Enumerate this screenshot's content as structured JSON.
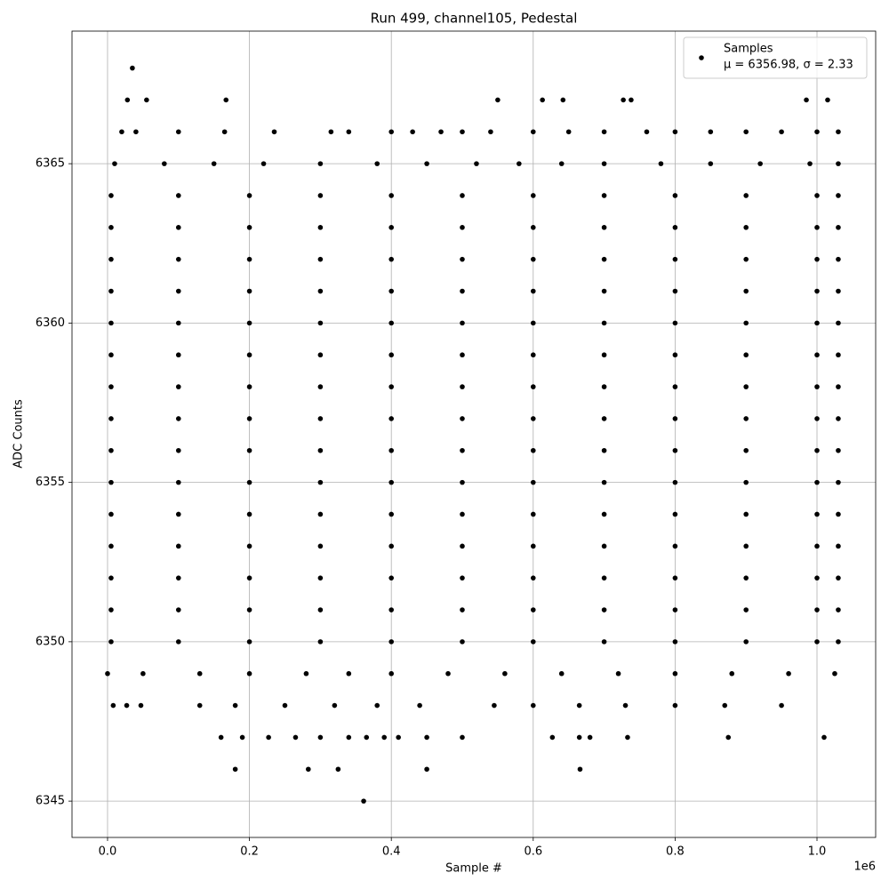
{
  "chart_data": {
    "type": "scatter",
    "title": "Run 499, channel105, Pedestal",
    "xlabel": "Sample #",
    "ylabel": "ADC Counts",
    "x_offset_label": "1e6",
    "legend_note": "μ = 6356.98, σ = 2.33",
    "legend_loc": "upper right",
    "grid": true,
    "xlim": [
      -50100,
      1082700
    ],
    "ylim": [
      6343.86,
      6369.16
    ],
    "xticks": [
      {
        "value": 0,
        "label": "0.0"
      },
      {
        "value": 200000,
        "label": "0.2"
      },
      {
        "value": 400000,
        "label": "0.4"
      },
      {
        "value": 600000,
        "label": "0.6"
      },
      {
        "value": 800000,
        "label": "0.8"
      },
      {
        "value": 1000000,
        "label": "1.0"
      }
    ],
    "yticks": [
      6345,
      6350,
      6355,
      6360,
      6365
    ],
    "series": [
      {
        "name": "Samples",
        "color": "#000000",
        "x": [
          35000,
          28000,
          55000,
          167000,
          550000,
          613000,
          642000,
          727000,
          738000,
          985000,
          1015000,
          20000,
          40000,
          100000,
          165000,
          235000,
          315000,
          340000,
          400000,
          430000,
          470000,
          500000,
          540000,
          600000,
          650000,
          700000,
          760000,
          800000,
          850000,
          900000,
          950000,
          1000000,
          1030000,
          10000,
          80000,
          150000,
          220000,
          300000,
          380000,
          450000,
          520000,
          580000,
          640000,
          700000,
          780000,
          850000,
          920000,
          990000,
          1030000,
          5000,
          100000,
          200000,
          300000,
          400000,
          500000,
          600000,
          700000,
          800000,
          900000,
          1000000,
          1030000,
          5000,
          100000,
          200000,
          300000,
          400000,
          500000,
          600000,
          700000,
          800000,
          900000,
          1000000,
          1030000,
          5000,
          100000,
          200000,
          300000,
          400000,
          500000,
          600000,
          700000,
          800000,
          900000,
          1000000,
          1030000,
          5000,
          100000,
          200000,
          300000,
          400000,
          500000,
          600000,
          700000,
          800000,
          900000,
          1000000,
          1030000,
          5000,
          100000,
          200000,
          300000,
          400000,
          500000,
          600000,
          700000,
          800000,
          900000,
          1000000,
          1030000,
          5000,
          100000,
          200000,
          300000,
          400000,
          500000,
          600000,
          700000,
          800000,
          900000,
          1000000,
          1030000,
          5000,
          100000,
          200000,
          300000,
          400000,
          500000,
          600000,
          700000,
          800000,
          900000,
          1000000,
          1030000,
          5000,
          100000,
          200000,
          300000,
          400000,
          500000,
          600000,
          700000,
          800000,
          900000,
          1000000,
          1030000,
          5000,
          100000,
          200000,
          300000,
          400000,
          500000,
          600000,
          700000,
          800000,
          900000,
          1000000,
          1030000,
          5000,
          100000,
          200000,
          300000,
          400000,
          500000,
          600000,
          700000,
          800000,
          900000,
          1000000,
          1030000,
          5000,
          100000,
          200000,
          300000,
          400000,
          500000,
          600000,
          700000,
          800000,
          900000,
          1000000,
          1030000,
          5000,
          100000,
          200000,
          300000,
          400000,
          500000,
          600000,
          700000,
          800000,
          900000,
          1000000,
          1030000,
          5000,
          100000,
          200000,
          300000,
          400000,
          500000,
          600000,
          700000,
          800000,
          900000,
          1000000,
          1030000,
          5000,
          100000,
          200000,
          300000,
          400000,
          500000,
          600000,
          700000,
          800000,
          900000,
          1000000,
          1030000,
          5000,
          100000,
          200000,
          300000,
          400000,
          500000,
          600000,
          700000,
          800000,
          900000,
          1000000,
          1030000,
          0,
          50000,
          130000,
          200000,
          280000,
          340000,
          400000,
          480000,
          560000,
          640000,
          720000,
          800000,
          880000,
          960000,
          1025000,
          8000,
          27000,
          47000,
          130000,
          180000,
          250000,
          320000,
          380000,
          440000,
          545000,
          600000,
          665000,
          730000,
          800000,
          870000,
          950000,
          160000,
          190000,
          227000,
          265000,
          300000,
          340000,
          365000,
          390000,
          410000,
          450000,
          500000,
          627000,
          665000,
          680000,
          733000,
          875000,
          1010000,
          180000,
          283000,
          325000,
          450000,
          666000,
          361000
        ],
        "y": [
          6368,
          6367,
          6367,
          6367,
          6367,
          6367,
          6367,
          6367,
          6367,
          6367,
          6367,
          6366,
          6366,
          6366,
          6366,
          6366,
          6366,
          6366,
          6366,
          6366,
          6366,
          6366,
          6366,
          6366,
          6366,
          6366,
          6366,
          6366,
          6366,
          6366,
          6366,
          6366,
          6366,
          6365,
          6365,
          6365,
          6365,
          6365,
          6365,
          6365,
          6365,
          6365,
          6365,
          6365,
          6365,
          6365,
          6365,
          6365,
          6365,
          6364,
          6364,
          6364,
          6364,
          6364,
          6364,
          6364,
          6364,
          6364,
          6364,
          6364,
          6364,
          6363,
          6363,
          6363,
          6363,
          6363,
          6363,
          6363,
          6363,
          6363,
          6363,
          6363,
          6363,
          6362,
          6362,
          6362,
          6362,
          6362,
          6362,
          6362,
          6362,
          6362,
          6362,
          6362,
          6362,
          6361,
          6361,
          6361,
          6361,
          6361,
          6361,
          6361,
          6361,
          6361,
          6361,
          6361,
          6361,
          6360,
          6360,
          6360,
          6360,
          6360,
          6360,
          6360,
          6360,
          6360,
          6360,
          6360,
          6360,
          6359,
          6359,
          6359,
          6359,
          6359,
          6359,
          6359,
          6359,
          6359,
          6359,
          6359,
          6359,
          6358,
          6358,
          6358,
          6358,
          6358,
          6358,
          6358,
          6358,
          6358,
          6358,
          6358,
          6358,
          6357,
          6357,
          6357,
          6357,
          6357,
          6357,
          6357,
          6357,
          6357,
          6357,
          6357,
          6357,
          6356,
          6356,
          6356,
          6356,
          6356,
          6356,
          6356,
          6356,
          6356,
          6356,
          6356,
          6356,
          6355,
          6355,
          6355,
          6355,
          6355,
          6355,
          6355,
          6355,
          6355,
          6355,
          6355,
          6355,
          6354,
          6354,
          6354,
          6354,
          6354,
          6354,
          6354,
          6354,
          6354,
          6354,
          6354,
          6354,
          6353,
          6353,
          6353,
          6353,
          6353,
          6353,
          6353,
          6353,
          6353,
          6353,
          6353,
          6353,
          6352,
          6352,
          6352,
          6352,
          6352,
          6352,
          6352,
          6352,
          6352,
          6352,
          6352,
          6352,
          6351,
          6351,
          6351,
          6351,
          6351,
          6351,
          6351,
          6351,
          6351,
          6351,
          6351,
          6351,
          6350,
          6350,
          6350,
          6350,
          6350,
          6350,
          6350,
          6350,
          6350,
          6350,
          6350,
          6350,
          6349,
          6349,
          6349,
          6349,
          6349,
          6349,
          6349,
          6349,
          6349,
          6349,
          6349,
          6349,
          6349,
          6349,
          6349,
          6348,
          6348,
          6348,
          6348,
          6348,
          6348,
          6348,
          6348,
          6348,
          6348,
          6348,
          6348,
          6348,
          6348,
          6348,
          6348,
          6347,
          6347,
          6347,
          6347,
          6347,
          6347,
          6347,
          6347,
          6347,
          6347,
          6347,
          6347,
          6347,
          6347,
          6347,
          6347,
          6347,
          6346,
          6346,
          6346,
          6346,
          6346,
          6345
        ]
      }
    ]
  }
}
